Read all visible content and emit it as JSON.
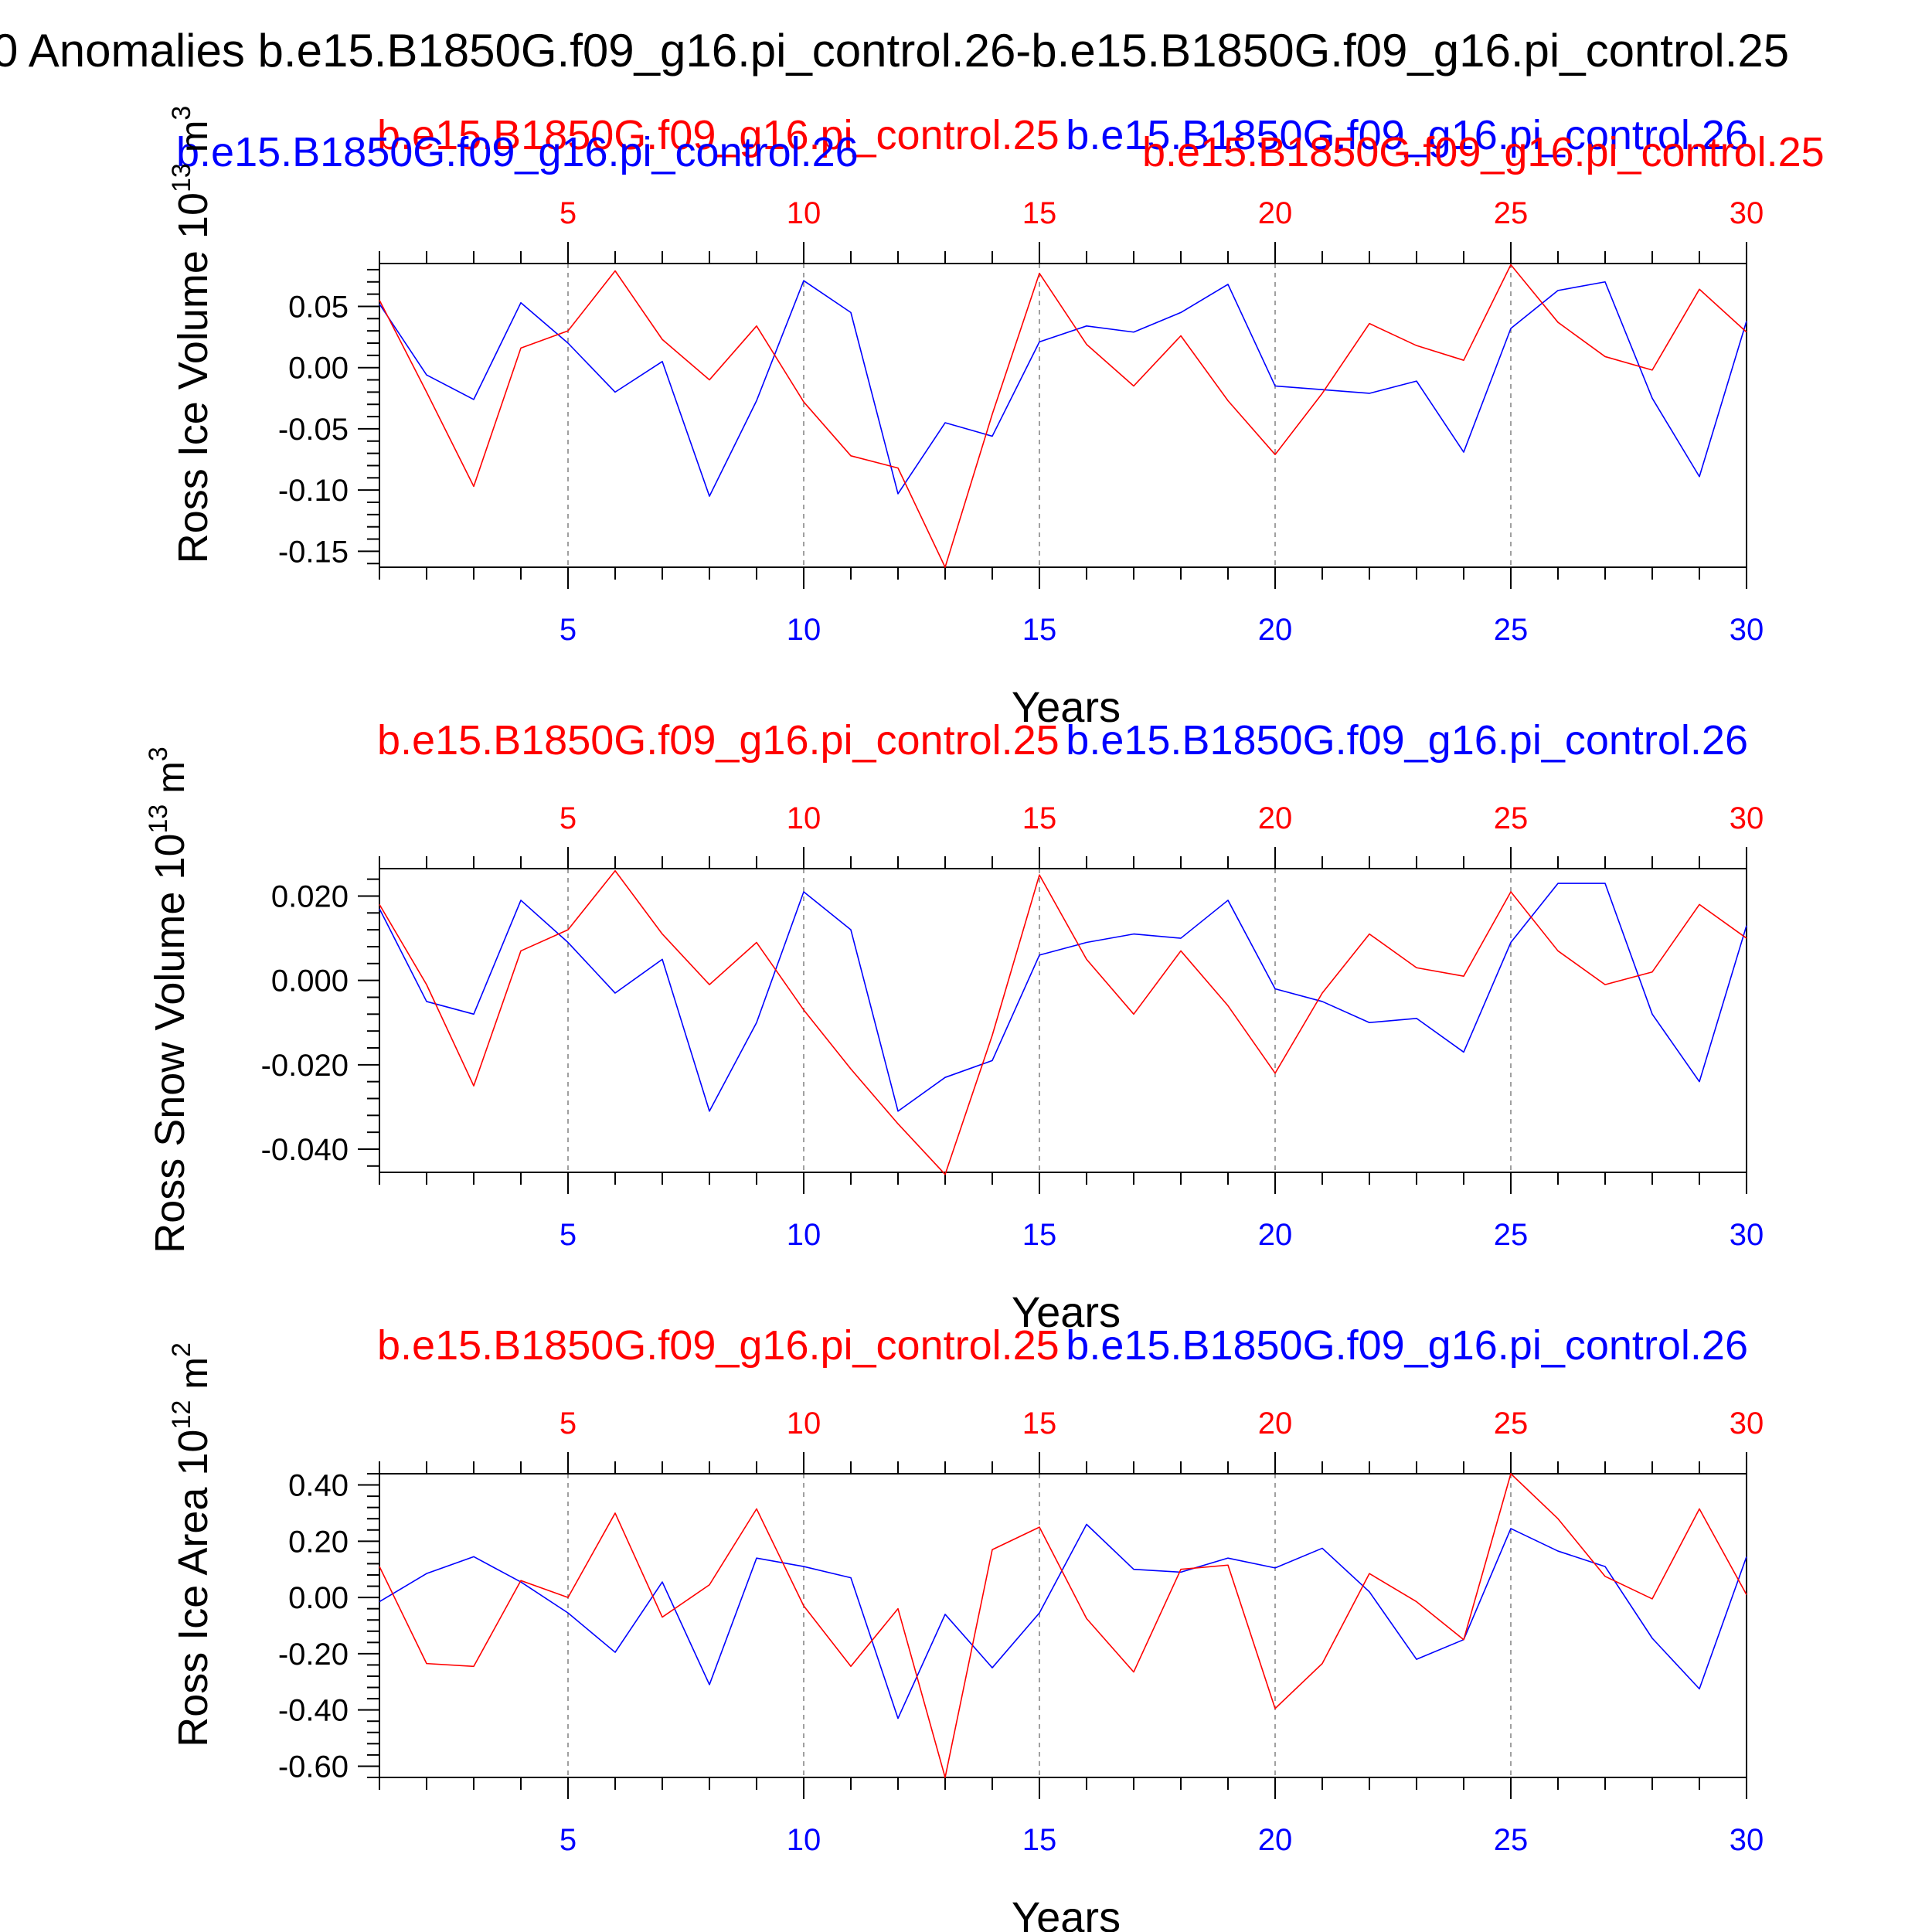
{
  "figure_title": "0 Anomalies b.e15.B1850G.f09_g16.pi_control.26-b.e15.B1850G.f09_g16.pi_control.25",
  "overlay_labels": {
    "case26": "b.e15.B1850G.f09_g16.pi_control.26",
    "case25": "b.e15.B1850G.f09_g16.pi_control.25"
  },
  "colors": {
    "case26": "#0000ff",
    "case25": "#ff0000",
    "axis": "#000000",
    "grid": "#808080"
  },
  "chart_data": [
    {
      "type": "line",
      "ylabel_main": "Ross Ice Volume 10",
      "ylabel_exp": "13",
      "ylabel_unit": " m",
      "ylabel_unit_exp": "3",
      "xlabel": "Years",
      "series_labels": {
        "left_blue": "b.e15.B1850G.f09_g16.pi_control.26",
        "left_red": "b.e15.B1850G.f09_g16.pi_control.25",
        "right_blue": "b.e15.B1850G.f09_g16.pi_control.26",
        "right_red": "b.e15.B1850G.f09_g16.pi_control.25"
      },
      "xlim": [
        1,
        30
      ],
      "ylim": [
        -0.163,
        0.085
      ],
      "xticks": [
        5,
        10,
        15,
        20,
        25,
        30
      ],
      "xtick_labels": [
        "5",
        "10",
        "15",
        "20",
        "25",
        "30"
      ],
      "yticks": [
        0.05,
        0.0,
        -0.05,
        -0.1,
        -0.15
      ],
      "ytick_labels": [
        "0.05",
        "0.00",
        "-0.05",
        "-0.10",
        "-0.15"
      ],
      "x": [
        1,
        2,
        3,
        4,
        5,
        6,
        7,
        8,
        9,
        10,
        11,
        12,
        13,
        14,
        15,
        16,
        17,
        18,
        19,
        20,
        21,
        22,
        23,
        24,
        25,
        26,
        27,
        28,
        29,
        30
      ],
      "series": [
        {
          "values": [
            0.052,
            -0.006,
            -0.026,
            0.053,
            0.02,
            -0.02,
            0.005,
            -0.105,
            -0.027,
            0.071,
            0.045,
            -0.103,
            -0.045,
            -0.056,
            0.021,
            0.034,
            0.029,
            0.045,
            0.068,
            -0.015,
            -0.018,
            -0.021,
            -0.011,
            -0.069,
            0.032,
            0.063,
            0.07,
            -0.025,
            -0.089,
            0.038
          ]
        },
        {
          "values": [
            0.055,
            -0.02,
            -0.097,
            0.016,
            0.03,
            0.079,
            0.023,
            -0.01,
            0.034,
            -0.028,
            -0.072,
            -0.082,
            -0.163,
            -0.038,
            0.077,
            0.019,
            -0.015,
            0.026,
            -0.027,
            -0.071,
            -0.021,
            0.036,
            0.018,
            0.006,
            0.084,
            0.037,
            0.009,
            -0.002,
            0.064,
            0.029
          ]
        }
      ]
    },
    {
      "type": "line",
      "ylabel_main": "Ross Snow Volume 10",
      "ylabel_exp": "13",
      "ylabel_unit": " m",
      "ylabel_unit_exp": "3",
      "xlabel": "Years",
      "series_labels": {
        "left_blue": "",
        "left_red": "b.e15.B1850G.f09_g16.pi_control.25",
        "right_blue": "b.e15.B1850G.f09_g16.pi_control.26",
        "right_red": ""
      },
      "xlim": [
        1,
        30
      ],
      "ylim": [
        -0.0455,
        0.0265
      ],
      "xticks": [
        5,
        10,
        15,
        20,
        25,
        30
      ],
      "xtick_labels": [
        "5",
        "10",
        "15",
        "20",
        "25",
        "30"
      ],
      "yticks": [
        0.02,
        0.0,
        -0.02,
        -0.04
      ],
      "ytick_labels": [
        "0.020",
        "0.000",
        "-0.020",
        "-0.040"
      ],
      "x": [
        1,
        2,
        3,
        4,
        5,
        6,
        7,
        8,
        9,
        10,
        11,
        12,
        13,
        14,
        15,
        16,
        17,
        18,
        19,
        20,
        21,
        22,
        23,
        24,
        25,
        26,
        27,
        28,
        29,
        30
      ],
      "series": [
        {
          "values": [
            0.017,
            -0.005,
            -0.008,
            0.019,
            0.009,
            -0.003,
            0.005,
            -0.031,
            -0.01,
            0.021,
            0.012,
            -0.031,
            -0.023,
            -0.019,
            0.006,
            0.009,
            0.011,
            0.01,
            0.019,
            -0.002,
            -0.005,
            -0.01,
            -0.009,
            -0.017,
            0.009,
            0.023,
            0.023,
            -0.008,
            -0.024,
            0.013
          ]
        },
        {
          "values": [
            0.018,
            -0.001,
            -0.025,
            0.007,
            0.012,
            0.026,
            0.011,
            -0.001,
            0.009,
            -0.007,
            -0.021,
            -0.034,
            -0.046,
            -0.013,
            0.025,
            0.005,
            -0.008,
            0.007,
            -0.006,
            -0.022,
            -0.003,
            0.011,
            0.003,
            0.001,
            0.021,
            0.007,
            -0.001,
            0.002,
            0.018,
            0.01
          ]
        }
      ]
    },
    {
      "type": "line",
      "ylabel_main": "Ross Ice Area 10",
      "ylabel_exp": "12",
      "ylabel_unit": " m",
      "ylabel_unit_exp": "2",
      "xlabel": "Years",
      "series_labels": {
        "left_blue": "",
        "left_red": "b.e15.B1850G.f09_g16.pi_control.25",
        "right_blue": "b.e15.B1850G.f09_g16.pi_control.26",
        "right_red": ""
      },
      "xlim": [
        1,
        30
      ],
      "ylim": [
        -0.64,
        0.44
      ],
      "xticks": [
        5,
        10,
        15,
        20,
        25,
        30
      ],
      "xtick_labels": [
        "5",
        "10",
        "15",
        "20",
        "25",
        "30"
      ],
      "yticks": [
        0.4,
        0.2,
        0.0,
        -0.2,
        -0.4,
        -0.6
      ],
      "ytick_labels": [
        "0.40",
        "0.20",
        "0.00",
        "-0.20",
        "-0.40",
        "-0.60"
      ],
      "x": [
        1,
        2,
        3,
        4,
        5,
        6,
        7,
        8,
        9,
        10,
        11,
        12,
        13,
        14,
        15,
        16,
        17,
        18,
        19,
        20,
        21,
        22,
        23,
        24,
        25,
        26,
        27,
        28,
        29,
        30
      ],
      "series": [
        {
          "values": [
            -0.015,
            0.085,
            0.145,
            0.055,
            -0.055,
            -0.195,
            0.055,
            -0.31,
            0.14,
            0.11,
            0.07,
            -0.43,
            -0.06,
            -0.25,
            -0.055,
            0.26,
            0.1,
            0.09,
            0.14,
            0.105,
            0.175,
            0.02,
            -0.22,
            -0.15,
            0.245,
            0.165,
            0.11,
            -0.145,
            -0.325,
            0.145
          ]
        },
        {
          "values": [
            0.11,
            -0.235,
            -0.245,
            0.06,
            0.0,
            0.3,
            -0.07,
            0.045,
            0.315,
            -0.03,
            -0.245,
            -0.04,
            -0.64,
            0.17,
            0.25,
            -0.075,
            -0.265,
            0.1,
            0.115,
            -0.395,
            -0.235,
            0.085,
            -0.015,
            -0.15,
            0.44,
            0.28,
            0.075,
            -0.005,
            0.315,
            0.01
          ]
        }
      ]
    }
  ]
}
